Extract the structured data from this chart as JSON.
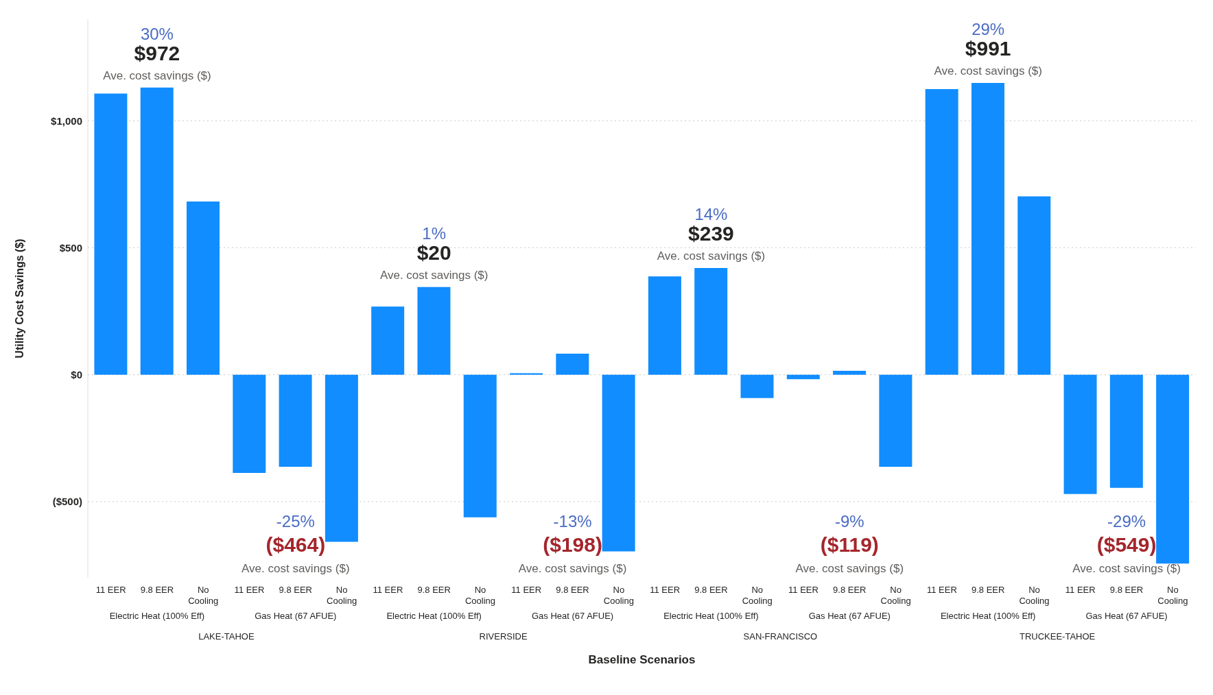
{
  "chart_data": {
    "type": "bar",
    "xlabel": "Baseline Scenarios",
    "ylabel": "Utility Cost Savings ($)",
    "categories": [
      "11 EER",
      "9.8 EER",
      "No Cooling",
      "11 EER",
      "9.8 EER",
      "No Cooling",
      "11 EER",
      "9.8 EER",
      "No Cooling",
      "11 EER",
      "9.8 EER",
      "No Cooling",
      "11 EER",
      "9.8 EER",
      "No Cooling",
      "11 EER",
      "9.8 EER",
      "No Cooling",
      "11 EER",
      "9.8 EER",
      "No Cooling",
      "11 EER",
      "9.8 EER",
      "No Cooling"
    ],
    "values": [
      1107,
      1131,
      682,
      -387,
      -363,
      -658,
      268,
      345,
      -562,
      6,
      83,
      -696,
      387,
      420,
      -92,
      -18,
      15,
      -363,
      1125,
      1149,
      702,
      -470,
      -446,
      -744
    ],
    "color": "#118dff",
    "ylim": [
      -800,
      1400
    ],
    "yticks": [
      {
        "value": -500,
        "label": "($500)"
      },
      {
        "value": 0,
        "label": "$0"
      },
      {
        "value": 500,
        "label": "$500"
      },
      {
        "value": 1000,
        "label": "$1,000"
      }
    ],
    "grid": "y",
    "annotations": [
      "30%",
      "$972",
      "Ave. cost savings ($)",
      "-25%",
      "($464)",
      "Ave. cost savings ($)",
      "1%",
      "$20",
      "Ave. cost savings ($)",
      "-13%",
      "($198)",
      "Ave. cost savings ($)",
      "14%",
      "$239",
      "Ave. cost savings ($)",
      "-9%",
      "($119)",
      "Ave. cost savings ($)",
      "29%",
      "$991",
      "Ave. cost savings ($)",
      "-29%",
      "($549)",
      "Ave. cost savings ($)",
      "Electric Heat (100% Eff)",
      "Gas Heat (67 AFUE)",
      "Electric Heat (100% Eff)",
      "Gas Heat (67 AFUE)",
      "Electric Heat (100% Eff)",
      "Gas Heat (67 AFUE)",
      "Electric Heat (100% Eff)",
      "Gas Heat (67 AFUE)",
      "LAKE-TAHOE",
      "RIVERSIDE",
      "SAN-FRANCISCO",
      "TRUCKEE-TAHOE"
    ]
  }
}
